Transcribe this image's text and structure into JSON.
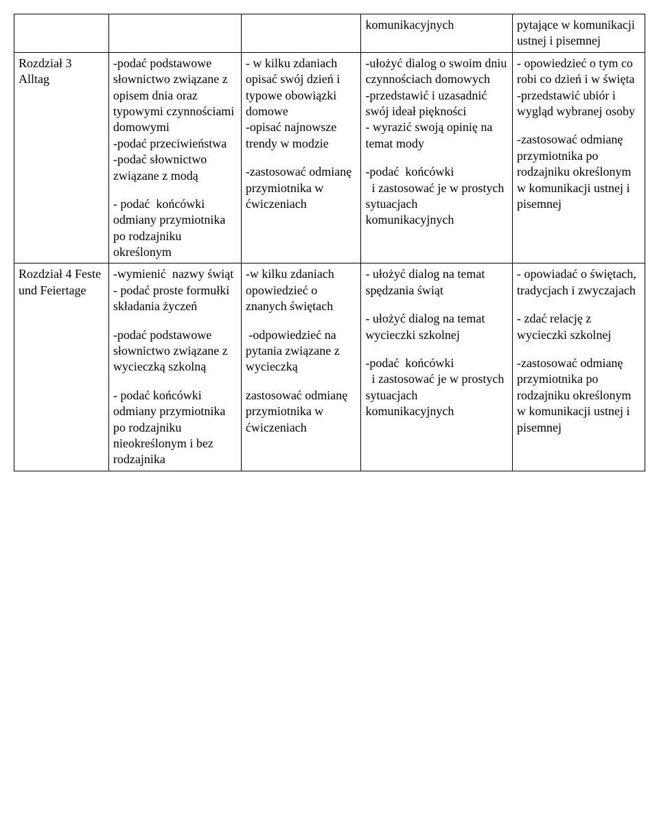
{
  "table": {
    "columns": 5,
    "col_widths_pct": [
      15,
      21,
      19,
      24,
      21
    ],
    "border_color": "#000000",
    "background_color": "#ffffff",
    "font_family": "Times New Roman",
    "font_size_pt": 14,
    "rows": [
      {
        "cells": [
          {
            "blocks": [
              ""
            ]
          },
          {
            "blocks": [
              ""
            ]
          },
          {
            "blocks": [
              ""
            ]
          },
          {
            "blocks": [
              "komunikacyjnych"
            ]
          },
          {
            "blocks": [
              "pytające w komunikacji ustnej i pisemnej"
            ]
          }
        ]
      },
      {
        "cells": [
          {
            "blocks": [
              "Rozdział 3 Alltag"
            ]
          },
          {
            "blocks": [
              "-podać podstawowe słownictwo związane z opisem dnia oraz typowymi czynnościami domowymi\n-podać przeciwieństwa\n-podać słownictwo związane z modą",
              "- podać  końcówki odmiany przymiotnika po rodzajniku określonym"
            ]
          },
          {
            "blocks": [
              "- w kilku zdaniach opisać swój dzień i typowe obowiązki domowe\n-opisać najnowsze trendy w modzie",
              "-zastosować odmianę przymiotnika w ćwiczeniach"
            ]
          },
          {
            "blocks": [
              "-ułożyć dialog o swoim dniu czynnościach domowych\n-przedstawić i uzasadnić swój ideał piękności\n- wyrazić swoją opinię na temat mody",
              "-podać  końcówki\n  i zastosować je w prostych sytuacjach komunikacyjnych"
            ]
          },
          {
            "blocks": [
              "- opowiedzieć o tym co robi co dzień i w święta\n-przedstawić ubiór i wygląd wybranej osoby",
              "-zastosować odmianę przymiotnika po rodzajniku określonym w komunikacji ustnej i pisemnej"
            ]
          }
        ]
      },
      {
        "cells": [
          {
            "blocks": [
              "Rozdział 4 Feste und Feiertage"
            ]
          },
          {
            "blocks": [
              "-wymienić  nazwy świąt\n- podać proste formułki składania życzeń",
              "-podać podstawowe słownictwo związane z wycieczką szkolną",
              "- podać końcówki odmiany przymiotnika po rodzajniku nieokreślonym i bez rodzajnika"
            ]
          },
          {
            "blocks": [
              "-w kilku zdaniach opowiedzieć o znanych świętach",
              " -odpowiedzieć na pytania związane z wycieczką",
              "zastosować odmianę przymiotnika w ćwiczeniach"
            ]
          },
          {
            "blocks": [
              "- ułożyć dialog na temat spędzania świąt",
              "- ułożyć dialog na temat wycieczki szkolnej",
              "-podać  końcówki\n  i zastosować je w prostych sytuacjach komunikacyjnych"
            ]
          },
          {
            "blocks": [
              "- opowiadać o świętach, tradycjach i zwyczajach",
              "- zdać relację z wycieczki szkolnej",
              "-zastosować odmianę przymiotnika po rodzajniku określonym w komunikacji ustnej i pisemnej"
            ]
          }
        ]
      }
    ]
  }
}
